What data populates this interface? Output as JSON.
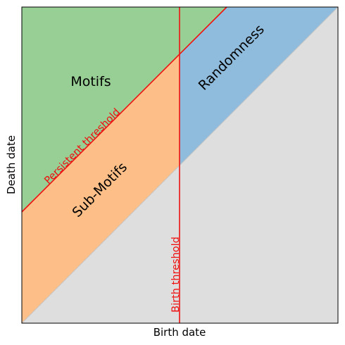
{
  "axes": {
    "xlabel": "Birth date",
    "ylabel": "Death date"
  },
  "regions": [
    {
      "name": "Motifs",
      "color": "#98cf94"
    },
    {
      "name": "Randomness",
      "color": "#8fbcdd"
    },
    {
      "name": "Sub-Motifs",
      "color": "#fdbf87"
    }
  ],
  "background_color": "#dedede",
  "thresholds": {
    "persistent_label": "Persistent threshold",
    "birth_label": "Birth threshold",
    "line_color": "#ee1111"
  }
}
